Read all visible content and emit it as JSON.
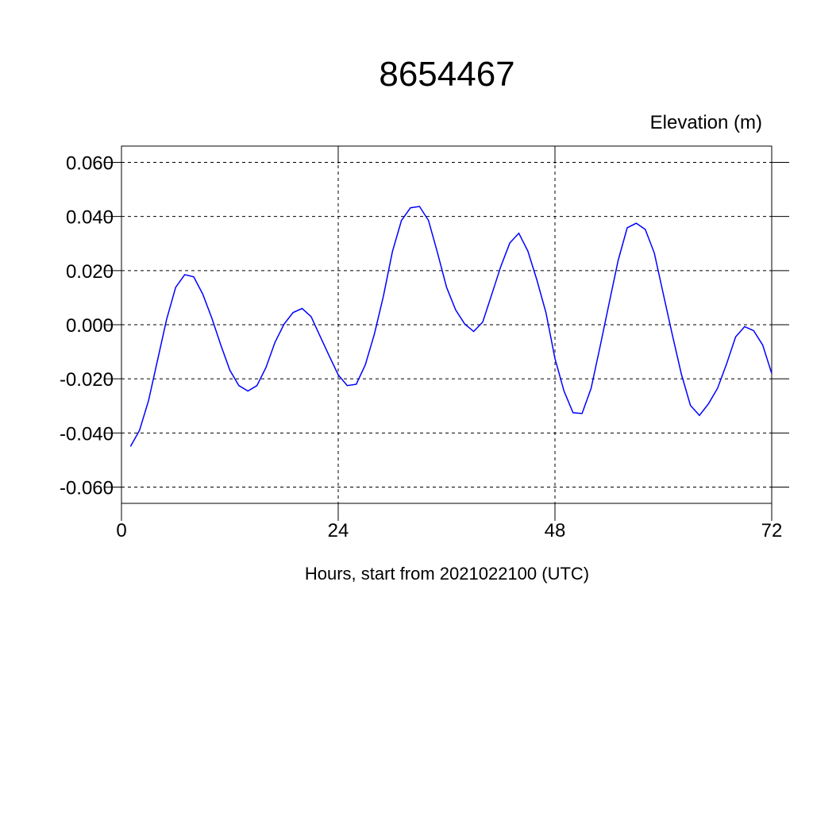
{
  "chart_data": {
    "type": "line",
    "title": "8654467",
    "ylabel": "Elevation (m)",
    "xlabel": "Hours, start from 2021022100 (UTC)",
    "x": [
      1,
      2,
      3,
      4,
      5,
      6,
      7,
      8,
      9,
      10,
      11,
      12,
      13,
      14,
      15,
      16,
      17,
      18,
      19,
      20,
      21,
      22,
      23,
      24,
      25,
      26,
      27,
      28,
      29,
      30,
      31,
      32,
      33,
      34,
      35,
      36,
      37,
      38,
      39,
      40,
      41,
      42,
      43,
      44,
      45,
      46,
      47,
      48,
      49,
      50,
      51,
      52,
      53,
      54,
      55,
      56,
      57,
      58,
      59,
      60,
      61,
      62,
      63,
      64,
      65,
      66,
      67,
      68,
      69,
      70,
      71,
      72
    ],
    "series": [
      {
        "color": "#0000ff",
        "values": [
          -0.045,
          -0.039,
          -0.028,
          -0.013,
          0.002,
          0.0138,
          0.0185,
          0.0177,
          0.0113,
          0.0025,
          -0.0075,
          -0.0168,
          -0.0225,
          -0.0245,
          -0.0225,
          -0.0158,
          -0.0065,
          0.0002,
          0.0045,
          0.006,
          0.003,
          -0.0043,
          -0.0115,
          -0.0185,
          -0.0225,
          -0.022,
          -0.0148,
          -0.0035,
          0.0105,
          0.027,
          0.0385,
          0.0432,
          0.0437,
          0.0385,
          0.0265,
          0.0138,
          0.0055,
          0.0003,
          -0.0025,
          0.001,
          0.0112,
          0.0215,
          0.0302,
          0.0338,
          0.0272,
          0.0165,
          0.0045,
          -0.0125,
          -0.0245,
          -0.0325,
          -0.0328,
          -0.0235,
          -0.008,
          0.008,
          0.0238,
          0.0358,
          0.0375,
          0.0352,
          0.0265,
          0.0113,
          -0.0038,
          -0.0183,
          -0.0298,
          -0.0335,
          -0.0292,
          -0.0235,
          -0.0145,
          -0.0045,
          -0.0007,
          -0.0022,
          -0.0075,
          -0.018
        ]
      }
    ],
    "xlim": [
      0,
      72
    ],
    "xticks": [
      0,
      24,
      48,
      72
    ],
    "ylim": [
      -0.066,
      0.066
    ],
    "yticks": [
      {
        "value": -0.06,
        "label": "-0.060"
      },
      {
        "value": -0.04,
        "label": "-0.040"
      },
      {
        "value": -0.02,
        "label": "-0.020"
      },
      {
        "value": 0,
        "label": "0.000"
      },
      {
        "value": 0.02,
        "label": "0.020"
      },
      {
        "value": 0.04,
        "label": "0.040"
      },
      {
        "value": 0.06,
        "label": "0.060"
      }
    ],
    "grid": true
  }
}
